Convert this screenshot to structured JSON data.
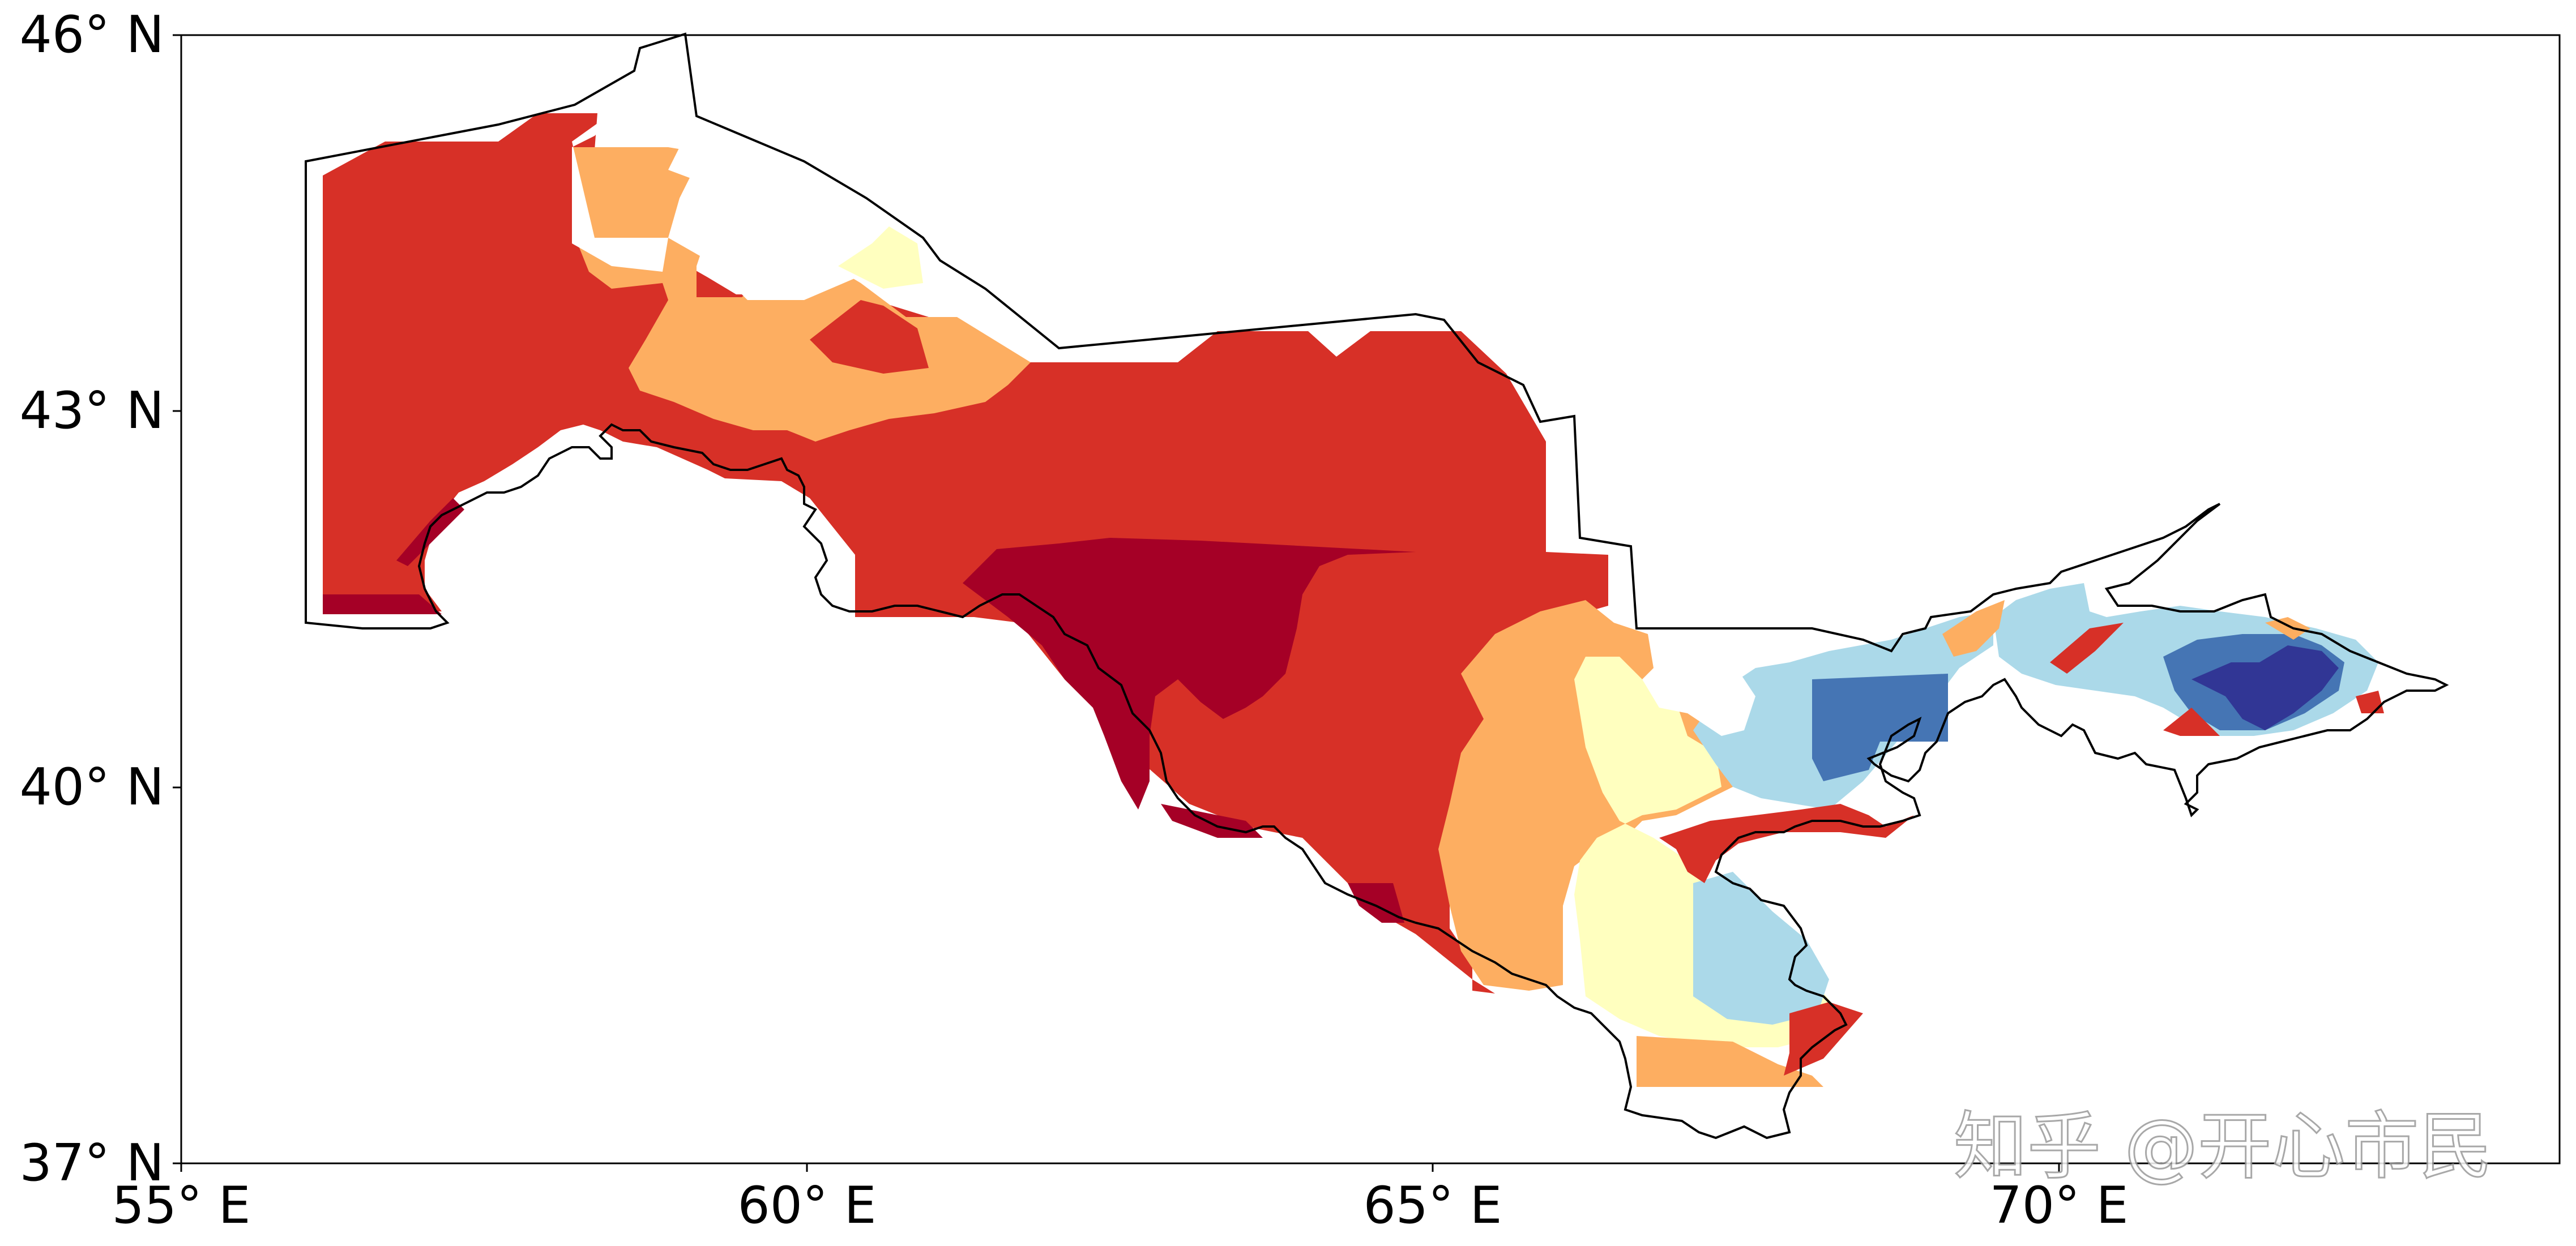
{
  "map": {
    "projection": "PlateCarree",
    "extent": {
      "lon_min": 55,
      "lon_max": 74,
      "lat_min": 37,
      "lat_max": 46
    },
    "y_ticks": [
      {
        "value": 46,
        "label": "46° N"
      },
      {
        "value": 43,
        "label": "43° N"
      },
      {
        "value": 40,
        "label": "40° N"
      },
      {
        "value": 37,
        "label": "37° N"
      }
    ],
    "x_ticks": [
      {
        "value": 55,
        "label": "55° E"
      },
      {
        "value": 60,
        "label": "60° E"
      },
      {
        "value": 65,
        "label": "65° E"
      },
      {
        "value": 70,
        "label": "70° E"
      }
    ],
    "palette": {
      "dark_red": "#a50026",
      "red": "#d73027",
      "orange": "#fdae61",
      "light_yellow": "#ffffbf",
      "light_blue": "#abd9e9",
      "blue": "#4575b4",
      "dark_blue": "#313695",
      "border": "#000000"
    },
    "watermark": "知乎 @开心市民"
  }
}
